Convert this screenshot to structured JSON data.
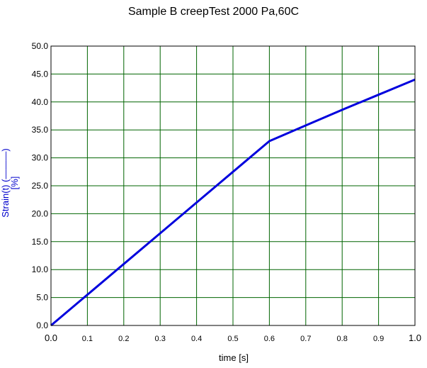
{
  "chart_data": {
    "type": "line",
    "title": "Sample B creepTest 2000 Pa,60C",
    "xlabel": "time [s]",
    "ylabel": "Strain(t) (———)\n[%]",
    "xlim": [
      0.0,
      1.0
    ],
    "ylim": [
      0.0,
      50.0
    ],
    "x_ticks": [
      "0.0",
      "0.1",
      "0.2",
      "0.3",
      "0.4",
      "0.5",
      "0.6",
      "0.7",
      "0.8",
      "0.9",
      "1.0"
    ],
    "y_ticks": [
      "0.0",
      "5.0",
      "10.0",
      "15.0",
      "20.0",
      "25.0",
      "30.0",
      "35.0",
      "40.0",
      "45.0",
      "50.0"
    ],
    "grid": true,
    "colors": {
      "line": "#0000dd",
      "grid": "#006400",
      "frame": "#000000"
    },
    "series": [
      {
        "x": [
          0.0,
          0.1,
          0.2,
          0.3,
          0.4,
          0.5,
          0.6,
          0.7,
          0.8,
          0.9,
          1.0
        ],
        "y": [
          0.0,
          5.5,
          11.0,
          16.5,
          22.0,
          27.5,
          33.0,
          35.8,
          38.6,
          41.3,
          44.0
        ]
      }
    ]
  }
}
